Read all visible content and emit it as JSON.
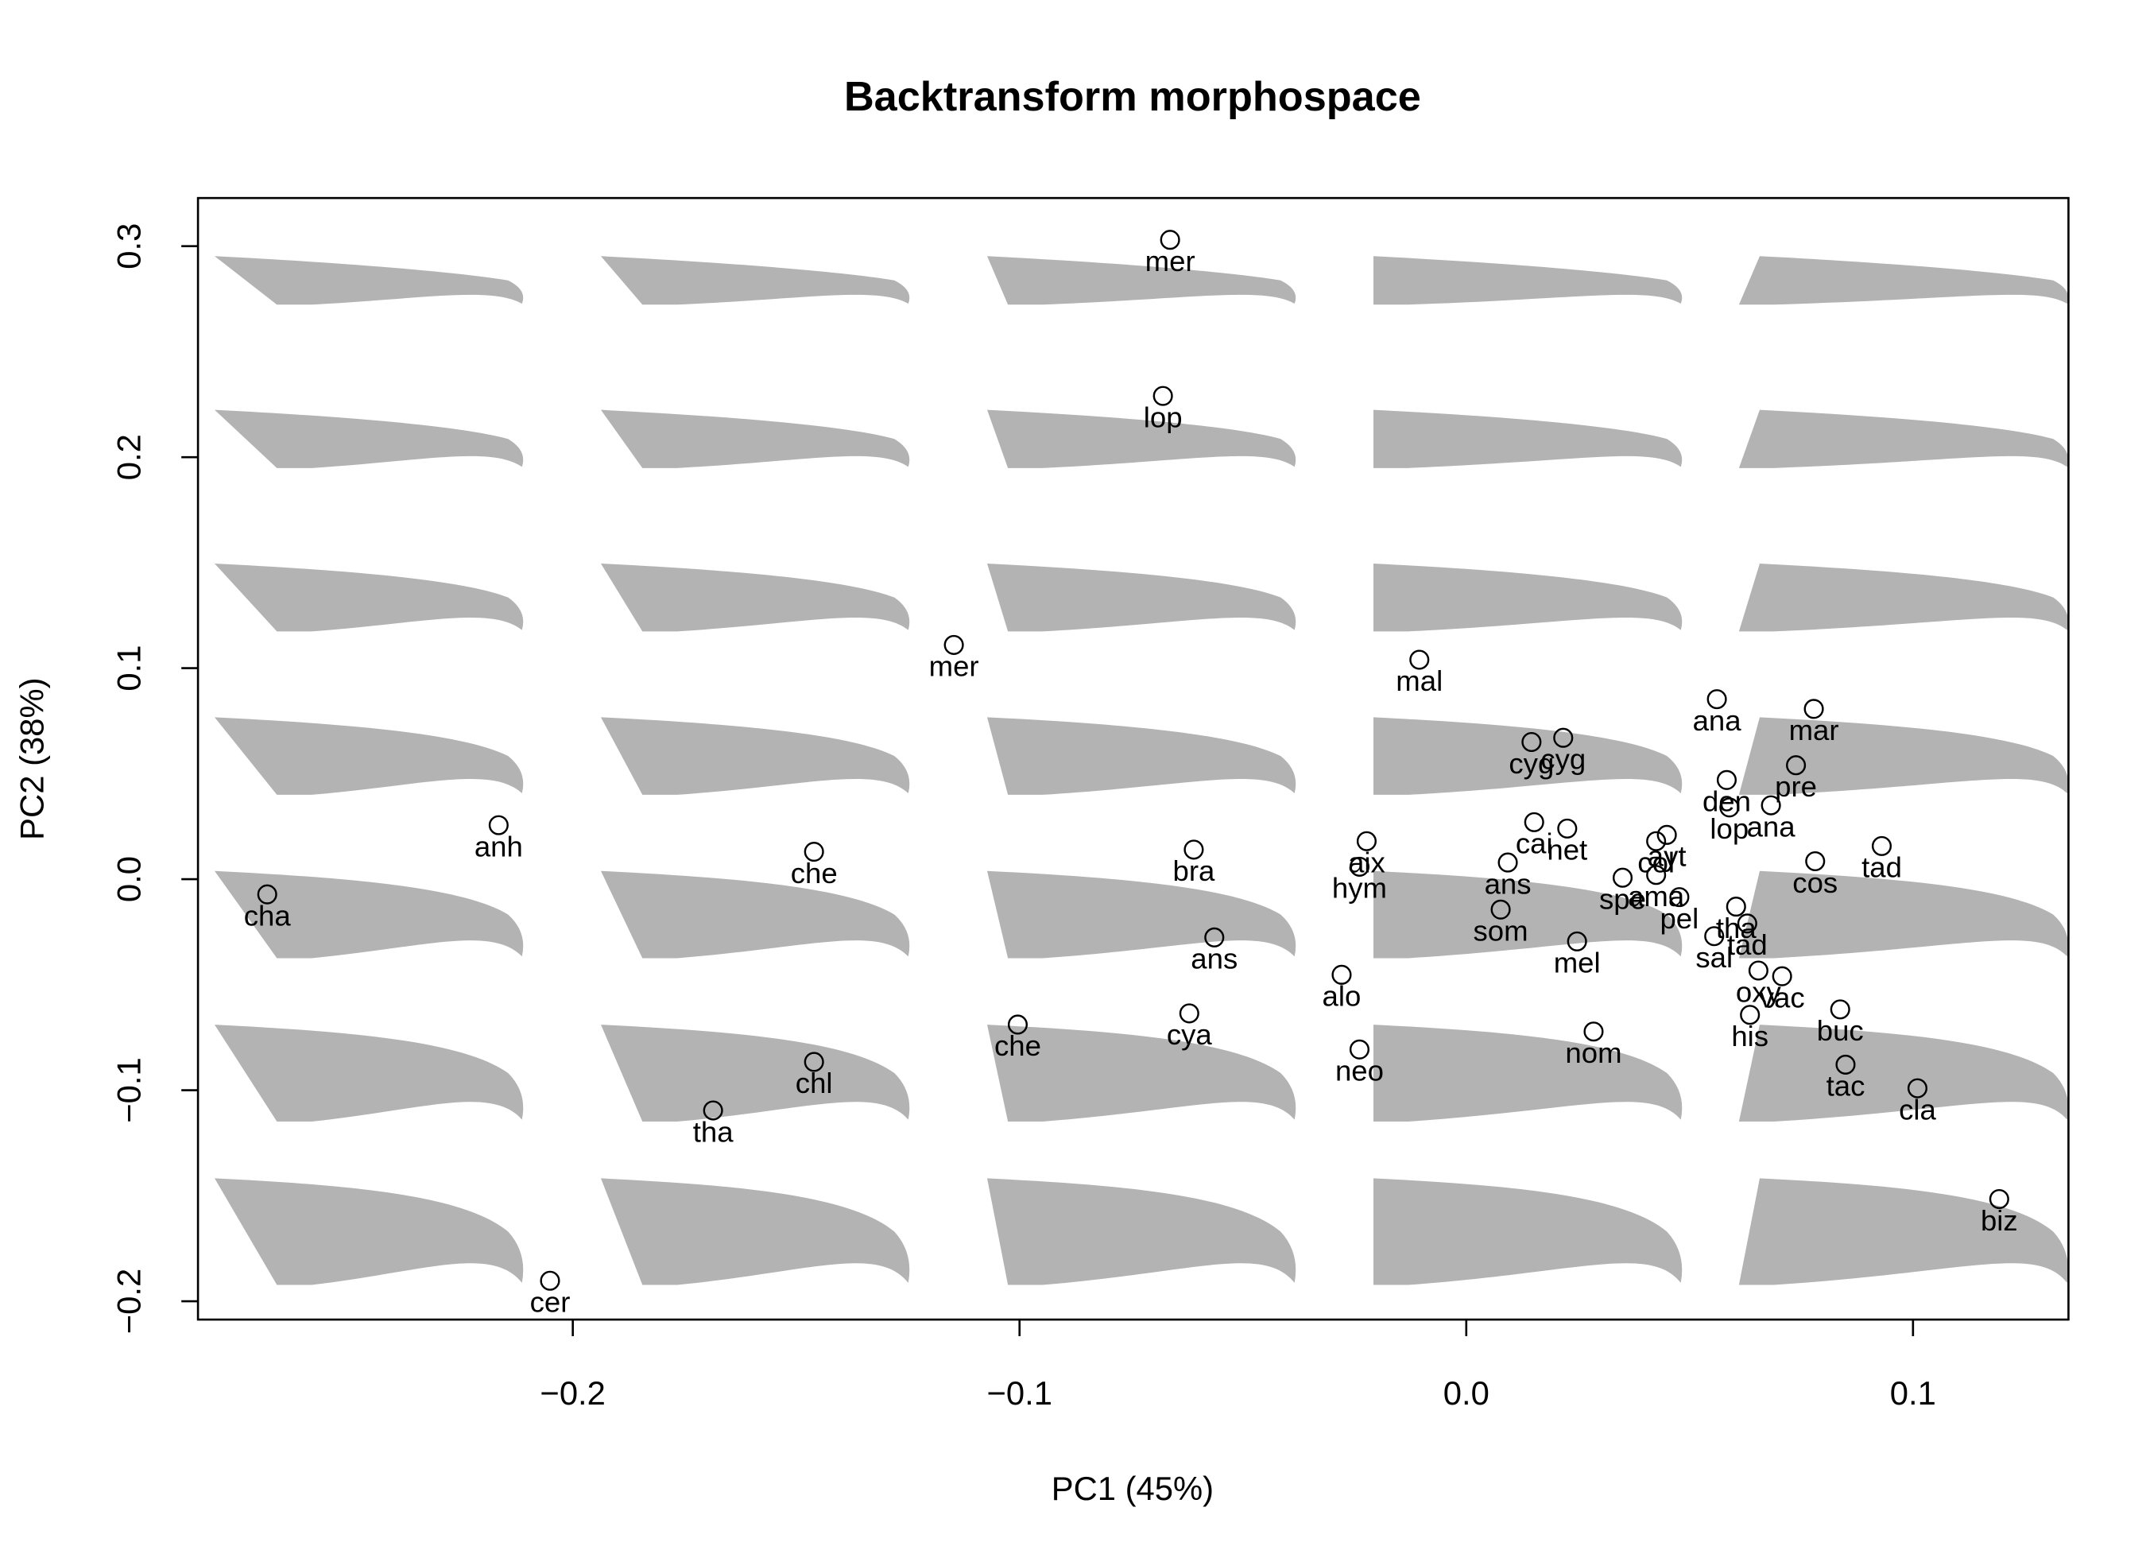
{
  "chart_data": {
    "type": "scatter",
    "title": "Backtransform morphospace",
    "xlabel": "PC1 (45%)",
    "ylabel": "PC2 (38%)",
    "xlim": [
      -0.2839,
      0.1348
    ],
    "ylim": [
      -0.2087,
      0.3228
    ],
    "xticks": [
      {
        "value": -0.2,
        "label": "−0.2"
      },
      {
        "value": -0.1,
        "label": "−0.1"
      },
      {
        "value": 0,
        "label": "0.0"
      },
      0.1
    ],
    "yticks": [
      {
        "value": -0.2,
        "label": "−0.2"
      },
      {
        "value": -0.1,
        "label": "−0.1"
      },
      {
        "value": 0,
        "label": "0.0"
      },
      0.1,
      0.2,
      0.3
    ],
    "labels": [
      "mer",
      "lop",
      "mer",
      "mal",
      "ana",
      "mar",
      "cyg",
      "cyg",
      "den",
      "pre",
      "lop",
      "ana",
      "anh",
      "cai",
      "net",
      "aix",
      "che",
      "bra",
      "ayt",
      "col",
      "ans",
      "cos",
      "tad",
      "hym",
      "cha",
      "spe",
      "ama",
      "som",
      "pel",
      "tha",
      "tad",
      "mel",
      "ans",
      "sal",
      "alo",
      "oxy",
      "vac",
      "his",
      "cya",
      "che",
      "buc",
      "nom",
      "neo",
      "chl",
      "tac",
      "cla",
      "tha",
      "biz",
      "cer"
    ],
    "x": [
      -0.0663,
      -0.0679,
      -0.1147,
      -0.0105,
      0.0561,
      0.0778,
      0.0146,
      0.0217,
      0.0583,
      0.0738,
      0.0589,
      0.0682,
      -0.2166,
      0.0152,
      0.0226,
      -0.0223,
      -0.146,
      -0.061,
      0.0449,
      0.0425,
      0.0093,
      0.0781,
      0.093,
      -0.0239,
      -0.2684,
      0.035,
      0.0425,
      0.0077,
      0.0477,
      0.0604,
      0.0629,
      0.0248,
      -0.0564,
      0.0555,
      -0.0279,
      0.0654,
      0.0707,
      0.0635,
      -0.062,
      -0.1004,
      0.0837,
      0.0285,
      -0.0239,
      -0.146,
      0.0849,
      0.101,
      -0.1686,
      0.1193,
      -0.2051
    ],
    "y": [
      0.303,
      0.229,
      0.111,
      0.104,
      0.0853,
      0.0807,
      0.065,
      0.067,
      0.047,
      0.054,
      0.034,
      0.035,
      0.0256,
      0.027,
      0.024,
      0.018,
      0.013,
      0.014,
      0.021,
      0.018,
      0.0079,
      0.0085,
      0.0157,
      0.0059,
      -0.0072,
      0.0007,
      0.002,
      -0.0144,
      -0.0085,
      -0.013,
      -0.021,
      -0.0295,
      -0.0276,
      -0.027,
      -0.0453,
      -0.0433,
      -0.046,
      -0.0643,
      -0.0636,
      -0.0689,
      -0.0617,
      -0.0722,
      -0.0807,
      -0.0866,
      -0.0879,
      -0.0991,
      -0.1096,
      -0.1516,
      -0.1903
    ],
    "marker_color": "#000000",
    "shape_color": "#b3b3b3"
  }
}
